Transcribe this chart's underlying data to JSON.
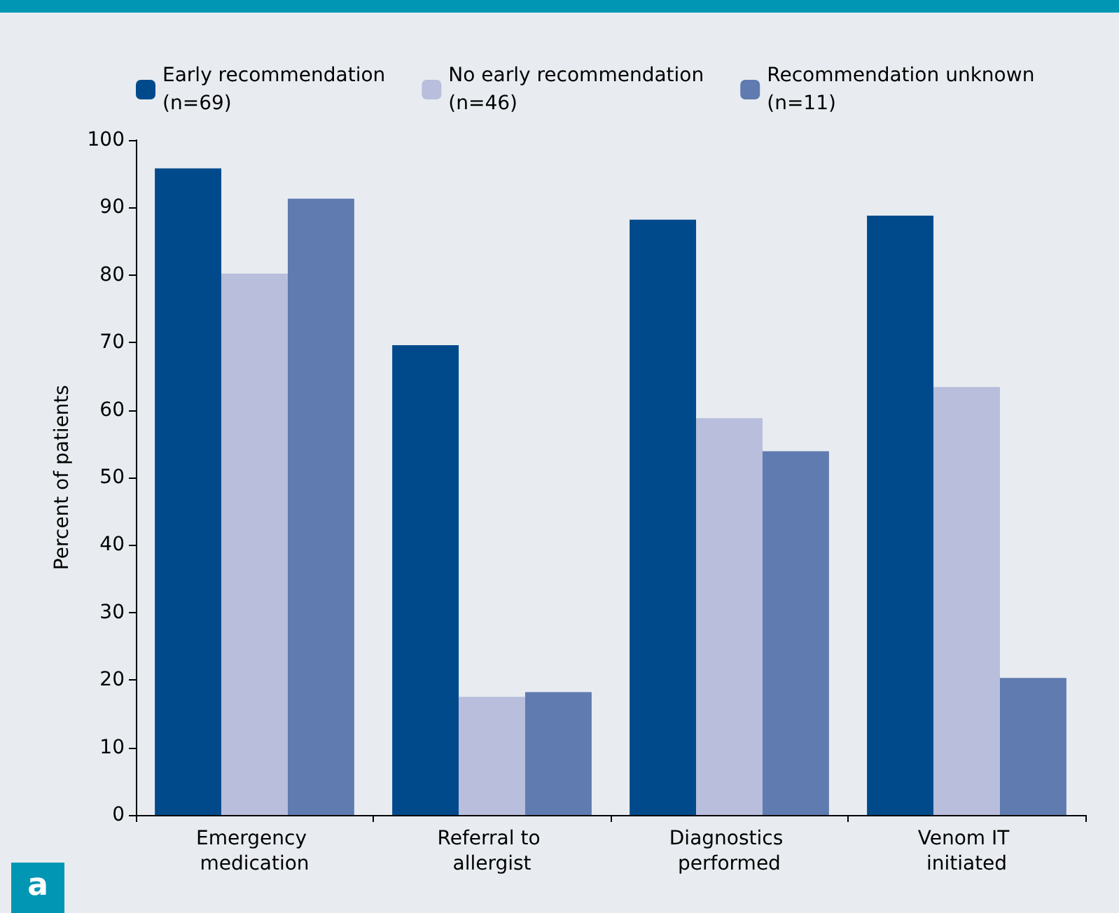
{
  "chart_data": {
    "type": "bar",
    "ylabel": "Percent of patients",
    "categories": [
      "Emergency medication",
      "Referral to allergist",
      "Diagnostics performed",
      "Venom IT initiated"
    ],
    "series": [
      {
        "name": "Early recommendation (n=69)",
        "color": "#004a8c",
        "values": [
          95.8,
          69.6,
          88.2,
          88.8
        ]
      },
      {
        "name": "No early recommendation (n=46)",
        "color": "#b8bedc",
        "values": [
          80.2,
          17.5,
          58.8,
          63.4
        ]
      },
      {
        "name": "Recommendation unknown (n=11)",
        "color": "#5f7bb0",
        "values": [
          91.3,
          18.2,
          53.9,
          20.3
        ]
      }
    ],
    "ylim": [
      0,
      100
    ],
    "yticks": [
      0,
      10,
      20,
      30,
      40,
      50,
      60,
      70,
      80,
      90,
      100
    ],
    "grid": false,
    "legend": "top",
    "annotations": [
      "a"
    ]
  }
}
